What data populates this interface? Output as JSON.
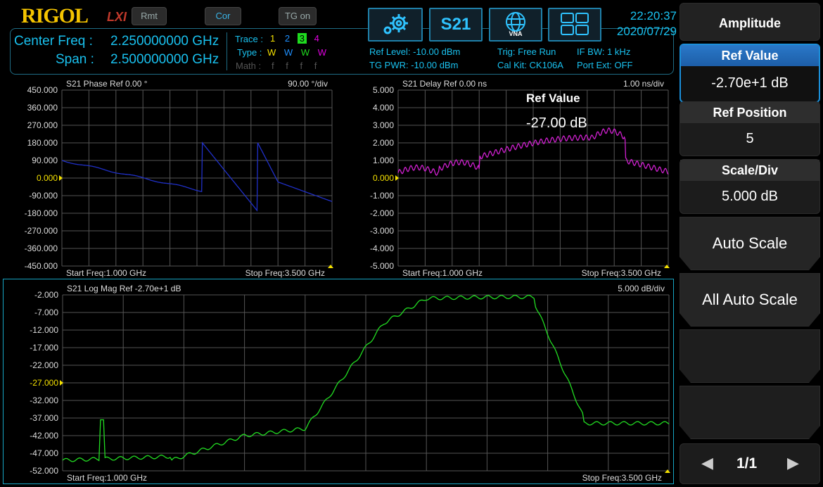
{
  "header": {
    "brand": "RIGOL",
    "lxi": "LXI",
    "rmt": "Rmt",
    "cor": "Cor",
    "tg_on": "TG on",
    "s21_button": "S21",
    "vna_label": "VNA",
    "time": "22:20:37",
    "date": "2020/07/29"
  },
  "info": {
    "center_label": "Center Freq :",
    "center_value": "2.250000000 GHz",
    "span_label": "Span :",
    "span_value": "2.500000000 GHz",
    "trace_label": "Trace :",
    "trace_nums": [
      "1",
      "2",
      "3",
      "4"
    ],
    "trace_colors": [
      "#f5e100",
      "#1e90ff",
      "#00e000",
      "#e000e0"
    ],
    "type_label": "Type :",
    "type_vals": [
      "W",
      "W",
      "W",
      "W"
    ],
    "math_label": "Math :",
    "math_vals": [
      "f",
      "f",
      "f",
      "f"
    ],
    "ref_level": "Ref Level: -10.00 dBm",
    "tg_pwr": "TG PWR: -10.00 dBm",
    "trig": "Trig: Free Run",
    "cal_kit": "Cal Kit: CK106A",
    "if_bw": "IF BW: 1 kHz",
    "port_ext": "Port Ext: OFF"
  },
  "plots": {
    "phase": {
      "header": "S21  Phase   Ref 0.00 °",
      "scale": "90.00  °/div",
      "ticks": [
        "450.000",
        "360.000",
        "270.000",
        "180.000",
        "90.000",
        "0.000",
        "-90.000",
        "-180.000",
        "-270.000",
        "-360.000",
        "-450.000"
      ],
      "ref_tick_index": 5,
      "color": "#2030c8",
      "start": "Start Freq:1.000 GHz",
      "stop": "Stop Freq:3.500 GHz"
    },
    "delay": {
      "header": "S21  Delay   Ref 0.00 ns",
      "scale": "1.00  ns/div",
      "ticks": [
        "5.000",
        "4.000",
        "3.000",
        "2.000",
        "1.000",
        "0.000",
        "-1.000",
        "-2.000",
        "-3.000",
        "-4.000",
        "-5.000"
      ],
      "ref_tick_index": 5,
      "color": "#d020d0",
      "start": "Start Freq:1.000 GHz",
      "stop": "Stop Freq:3.500 GHz",
      "popup_title": "Ref Value",
      "popup_value": "-27.00 dB"
    },
    "logmag": {
      "header": "S21  Log Mag   Ref -2.70e+1 dB",
      "scale": "5.000  dB/div",
      "ticks": [
        "-2.000",
        "-7.000",
        "-12.000",
        "-17.000",
        "-22.000",
        "-27.000",
        "-32.000",
        "-37.000",
        "-42.000",
        "-47.000",
        "-52.000"
      ],
      "ref_tick_index": 5,
      "color": "#22dd22",
      "start": "Start Freq:1.000 GHz",
      "stop": "Stop Freq:3.500 GHz"
    }
  },
  "menu": {
    "title": "Amplitude",
    "ref_value_label": "Ref Value",
    "ref_value": "-2.70e+1 dB",
    "ref_position_label": "Ref Position",
    "ref_position": "5",
    "scale_div_label": "Scale/Div",
    "scale_div": "5.000 dB",
    "auto_scale": "Auto Scale",
    "all_auto_scale": "All Auto Scale",
    "page": "1/1"
  }
}
